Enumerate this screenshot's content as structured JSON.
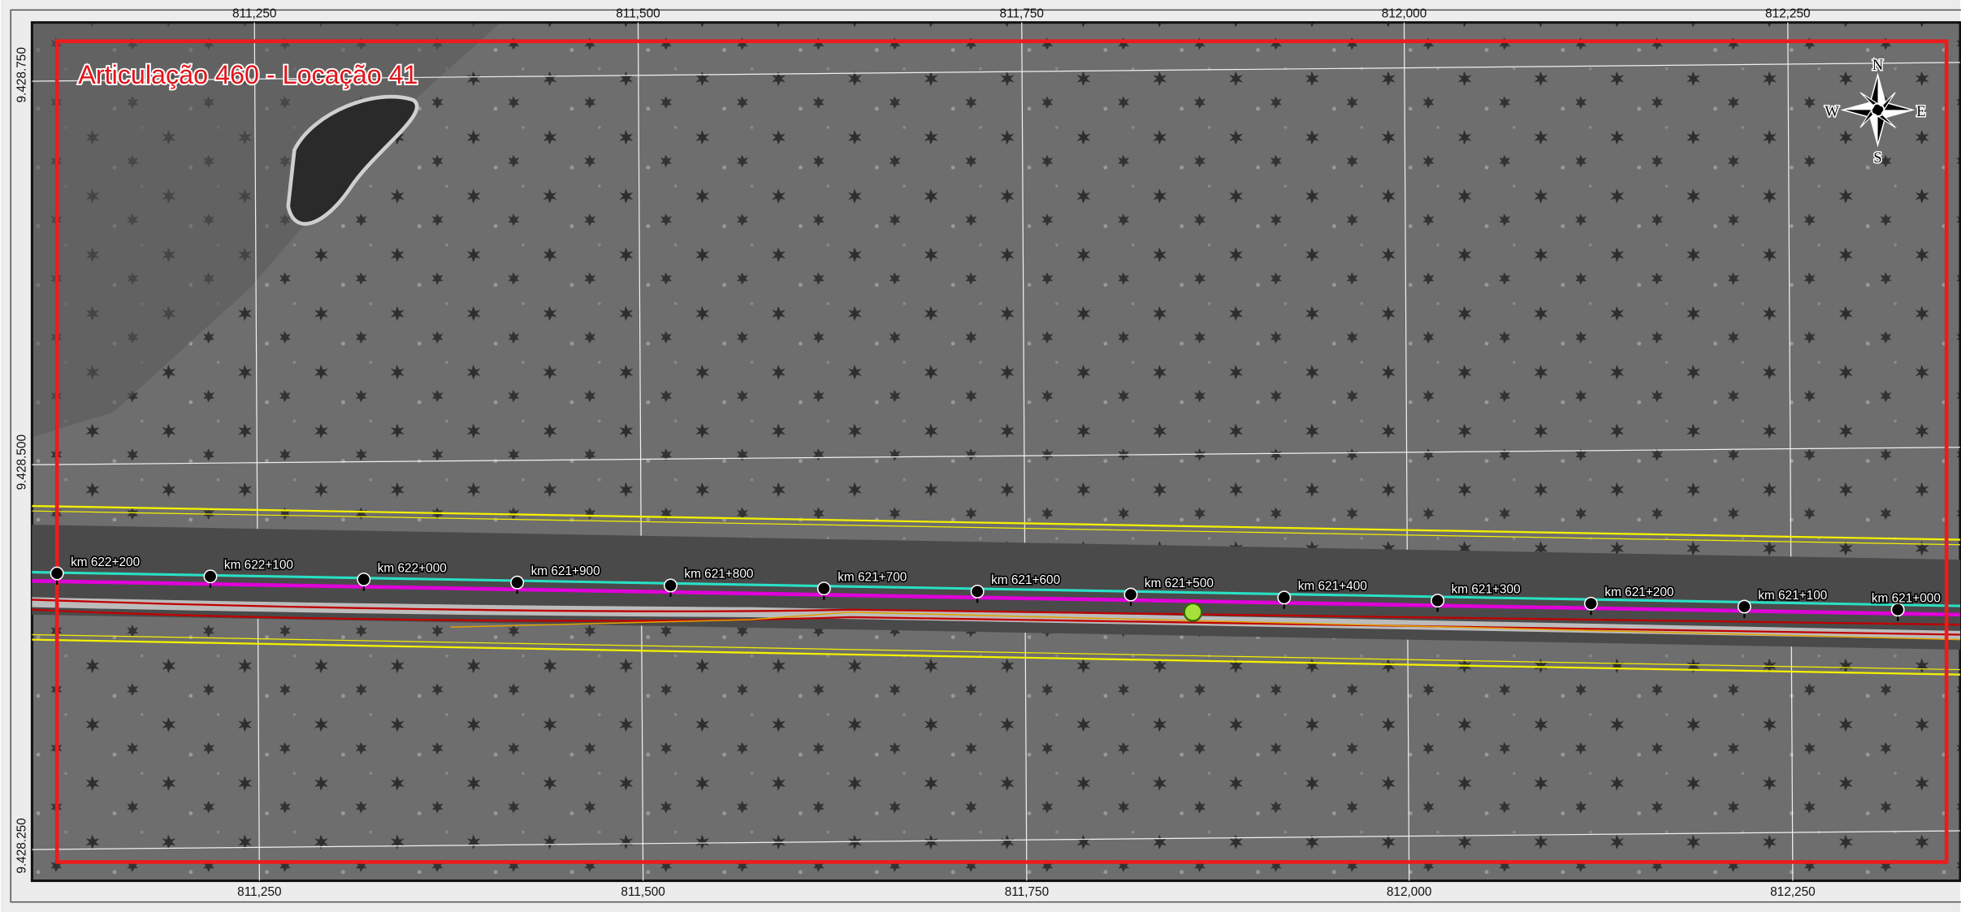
{
  "map": {
    "title": "Articulação 460 - Locação 41",
    "top_labels": [
      "811,250",
      "811,500",
      "811,750",
      "812,000",
      "812,250"
    ],
    "bottom_labels": [
      "811,250",
      "811,500",
      "811,750",
      "812,000",
      "812,250"
    ],
    "left_labels": [
      "9.428.750",
      "9.428.500",
      "9.428.250"
    ],
    "markers": [
      {
        "label": "km 622+200"
      },
      {
        "label": "km 622+100"
      },
      {
        "label": "km 622+000"
      },
      {
        "label": "km 621+900"
      },
      {
        "label": "km 621+800"
      },
      {
        "label": "km 621+700"
      },
      {
        "label": "km 621+600"
      },
      {
        "label": "km 621+500"
      },
      {
        "label": "km 621+400"
      },
      {
        "label": "km 621+300"
      },
      {
        "label": "km 621+200"
      },
      {
        "label": "km 621+100"
      },
      {
        "label": "km 621+000"
      }
    ],
    "compass": {
      "north": "N",
      "south": "S",
      "east": "E",
      "west": "W"
    }
  }
}
